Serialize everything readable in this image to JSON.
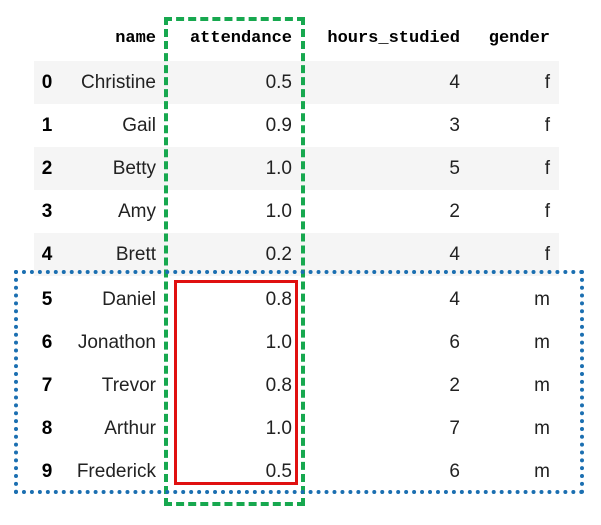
{
  "table": {
    "columns": [
      "name",
      "attendance",
      "hours_studied",
      "gender"
    ],
    "rows": [
      {
        "index": "0",
        "name": "Christine",
        "attendance": "0.5",
        "hours_studied": "4",
        "gender": "f"
      },
      {
        "index": "1",
        "name": "Gail",
        "attendance": "0.9",
        "hours_studied": "3",
        "gender": "f"
      },
      {
        "index": "2",
        "name": "Betty",
        "attendance": "1.0",
        "hours_studied": "5",
        "gender": "f"
      },
      {
        "index": "3",
        "name": "Amy",
        "attendance": "1.0",
        "hours_studied": "2",
        "gender": "f"
      },
      {
        "index": "4",
        "name": "Brett",
        "attendance": "0.2",
        "hours_studied": "4",
        "gender": "f"
      },
      {
        "index": "5",
        "name": "Daniel",
        "attendance": "0.8",
        "hours_studied": "4",
        "gender": "m"
      },
      {
        "index": "6",
        "name": "Jonathon",
        "attendance": "1.0",
        "hours_studied": "6",
        "gender": "m"
      },
      {
        "index": "7",
        "name": "Trevor",
        "attendance": "0.8",
        "hours_studied": "2",
        "gender": "m"
      },
      {
        "index": "8",
        "name": "Arthur",
        "attendance": "1.0",
        "hours_studied": "7",
        "gender": "m"
      },
      {
        "index": "9",
        "name": "Frederick",
        "attendance": "0.5",
        "hours_studied": "6",
        "gender": "m"
      }
    ]
  },
  "highlights": {
    "column_box_color": "#17a84f",
    "group_box_color": "#1b6fb1",
    "subset_box_color": "#e01010"
  }
}
